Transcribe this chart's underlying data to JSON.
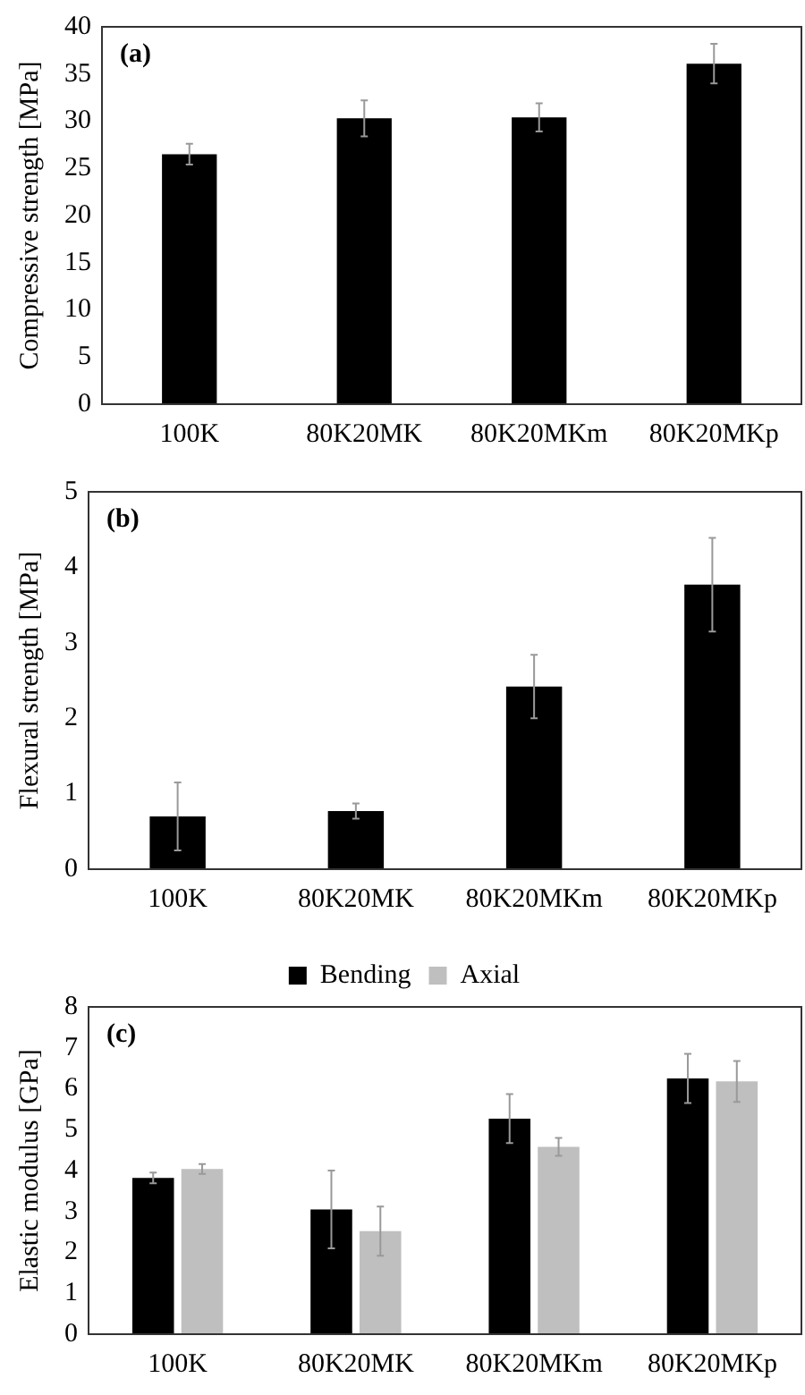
{
  "chart_data": [
    {
      "type": "bar",
      "ylabel": "Compressive strength [MPa]",
      "annotations": [
        "(a)"
      ],
      "categories": [
        "100K",
        "80K20MK",
        "80K20MKm",
        "80K20MKp"
      ],
      "values": [
        26.5,
        30.3,
        30.4,
        36.1
      ],
      "errors": [
        1.1,
        1.9,
        1.5,
        2.1
      ],
      "color": "#000000",
      "ylim": [
        0,
        40
      ],
      "yticks": [
        0,
        5,
        10,
        15,
        20,
        25,
        30,
        35,
        40
      ],
      "grid": false,
      "legend": false
    },
    {
      "type": "bar",
      "ylabel": "Flexural strength [MPa]",
      "annotations": [
        "(b)"
      ],
      "categories": [
        "100K",
        "80K20MK",
        "80K20MKm",
        "80K20MKp"
      ],
      "values": [
        0.7,
        0.77,
        2.42,
        3.77
      ],
      "errors": [
        0.45,
        0.1,
        0.42,
        0.62
      ],
      "color": "#000000",
      "ylim": [
        0,
        5
      ],
      "yticks": [
        0,
        1,
        2,
        3,
        4,
        5
      ],
      "grid": false,
      "legend": false
    },
    {
      "type": "bar",
      "ylabel": "Elastic modulus [GPa]",
      "annotations": [
        "(c)"
      ],
      "categories": [
        "100K",
        "80K20MK",
        "80K20MKm",
        "80K20MKp"
      ],
      "series": [
        {
          "name": "Bending",
          "color": "#000000",
          "values": [
            3.82,
            3.05,
            5.27,
            6.25
          ],
          "errors": [
            0.13,
            0.95,
            0.6,
            0.6
          ]
        },
        {
          "name": "Axial",
          "color": "#bfbfbf",
          "values": [
            4.04,
            2.52,
            4.58,
            6.18
          ],
          "errors": [
            0.12,
            0.6,
            0.22,
            0.5
          ]
        }
      ],
      "ylim": [
        0,
        8
      ],
      "yticks": [
        0,
        1,
        2,
        3,
        4,
        5,
        6,
        7,
        8
      ],
      "grid": false,
      "legend": "top"
    }
  ]
}
